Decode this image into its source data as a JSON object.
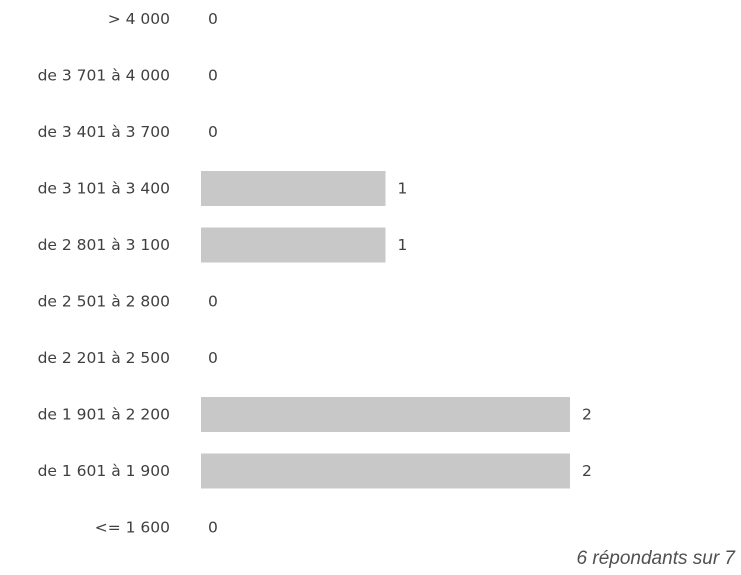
{
  "chart_data": {
    "type": "bar",
    "orientation": "horizontal",
    "categories": [
      "> 4 000",
      "de 3 701 à 4 000",
      "de 3 401 à 3 700",
      "de 3 101 à 3 400",
      "de 2 801 à 3 100",
      "de 2 501 à 2 800",
      "de 2 201 à 2 500",
      "de 1 901 à 2 200",
      "de 1 601 à 1 900",
      "<= 1 600"
    ],
    "values": [
      0,
      0,
      0,
      1,
      1,
      0,
      0,
      2,
      2,
      0
    ],
    "xlim": [
      0,
      2
    ],
    "grid": false,
    "legend": "none",
    "bar_color": "#c8c8c8",
    "text_color": "#404040"
  },
  "footer": {
    "respondents": "6 répondants sur 7"
  }
}
